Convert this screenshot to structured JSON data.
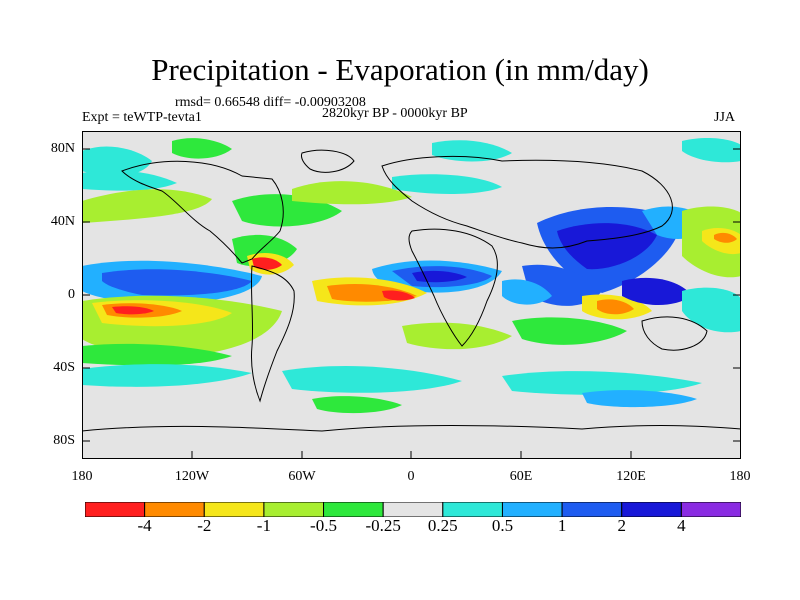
{
  "title": "Precipitation - Evaporation (in mm/day)",
  "stats": "rmsd= 0.66548 diff= -0.00903208",
  "experiment": "Expt = teWTP-tevta1",
  "period": "2820kyr BP - 0000kyr BP",
  "season": "JJA",
  "y_axis": {
    "ticks": [
      "80N",
      "40N",
      "0",
      "40S",
      "80S"
    ]
  },
  "x_axis": {
    "ticks": [
      "180",
      "120W",
      "60W",
      "0",
      "60E",
      "120E",
      "180"
    ]
  },
  "colorbar": {
    "colors": [
      "#ff1f1f",
      "#ff8a00",
      "#f5e61a",
      "#a8ee30",
      "#2ee83c",
      "#e4e4e4",
      "#2ee8d8",
      "#22b0ff",
      "#1e5cf0",
      "#1818d8",
      "#8a2be2"
    ],
    "labels": [
      "-4",
      "-2",
      "-1",
      "-0.5",
      "-0.25",
      "0.25",
      "0.5",
      "1",
      "2",
      "4"
    ]
  }
}
